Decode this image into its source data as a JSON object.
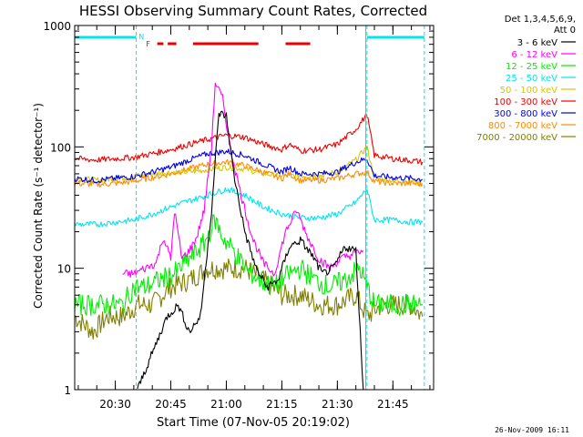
{
  "chart_data": {
    "type": "line",
    "title": "HESSI Observing Summary Count Rates, Corrected",
    "xlabel": "Start Time (07-Nov-05 20:19:02)",
    "ylabel": "Corrected Count Rate (s⁻¹ detector⁻¹)",
    "yscale": "log",
    "ylim": [
      1,
      1000
    ],
    "xlim": [
      "20:19:02",
      "21:56:00"
    ],
    "x_ticks": [
      "20:30",
      "20:45",
      "21:00",
      "21:15",
      "21:30",
      "21:45"
    ],
    "y_ticks": [
      "1",
      "10",
      "100",
      "1000"
    ],
    "grid": false,
    "timestamp": "26-Nov-2009 16:11",
    "legend": {
      "placement": "right",
      "header": [
        "Det 1,3,4,5,6,9,",
        "Att 0"
      ],
      "entries": [
        {
          "label": "3 - 6 keV",
          "color": "#000000"
        },
        {
          "label": "6 - 12 keV",
          "color": "#ff00ff"
        },
        {
          "label": "12 - 25 keV",
          "color": "#00ee00"
        },
        {
          "label": "25 - 50 keV",
          "color": "#00e5ee"
        },
        {
          "label": "50 - 100 keV",
          "color": "#d6c800"
        },
        {
          "label": "100 - 300 keV",
          "color": "#ee0000"
        },
        {
          "label": "300 - 800 keV",
          "color": "#0000ee"
        },
        {
          "label": "800 - 7000 keV",
          "color": "#ff8c00"
        },
        {
          "label": "7000 - 20000 keV",
          "color": "#808000"
        }
      ]
    },
    "flags": {
      "N": {
        "label": "N",
        "color": "#00e5ee"
      },
      "F": {
        "label": "F",
        "color": "#ee0000"
      }
    },
    "series": [
      {
        "name": "3 - 6 keV",
        "color": "#000000",
        "x": [
          "20:36",
          "20:40",
          "20:44",
          "20:47",
          "20:50",
          "20:53",
          "20:56",
          "20:58",
          "21:00",
          "21:02",
          "21:05",
          "21:08",
          "21:11",
          "21:14",
          "21:17",
          "21:20",
          "21:23",
          "21:26",
          "21:29",
          "21:32",
          "21:35",
          "21:37"
        ],
        "y": [
          1,
          2,
          4,
          5,
          3,
          4,
          30,
          190,
          180,
          60,
          20,
          10,
          7,
          8,
          15,
          17,
          13,
          9,
          10,
          15,
          14,
          1
        ]
      },
      {
        "name": "6 - 12 keV",
        "color": "#ff00ff",
        "x": [
          "20:32",
          "20:35",
          "20:38",
          "20:41",
          "20:43",
          "20:45",
          "20:46",
          "20:48",
          "20:50",
          "20:52",
          "20:54",
          "20:56",
          "20:57",
          "20:59",
          "21:01",
          "21:04",
          "21:07",
          "21:10",
          "21:13",
          "21:16",
          "21:19",
          "21:22",
          "21:25",
          "21:28",
          "21:31",
          "21:34",
          "21:37"
        ],
        "y": [
          9,
          9,
          10,
          11,
          18,
          12,
          30,
          12,
          14,
          18,
          30,
          100,
          340,
          250,
          100,
          40,
          18,
          11,
          9,
          20,
          30,
          18,
          12,
          10,
          12,
          13,
          14
        ]
      },
      {
        "name": "12 - 25 keV",
        "color": "#00ee00",
        "x": [
          "20:19",
          "20:24",
          "20:28",
          "20:32",
          "20:35",
          "20:38",
          "20:42",
          "20:46",
          "20:50",
          "20:54",
          "20:57",
          "20:59",
          "21:02",
          "21:05",
          "21:09",
          "21:13",
          "21:17",
          "21:20",
          "21:24",
          "21:28",
          "21:32",
          "21:36",
          "21:40",
          "21:45",
          "21:50",
          "21:53"
        ],
        "y": [
          5,
          5,
          5,
          5,
          7,
          7,
          8,
          9,
          12,
          16,
          25,
          18,
          14,
          10,
          8,
          7,
          9,
          10,
          8,
          7,
          8,
          10,
          5,
          5,
          5,
          5
        ]
      },
      {
        "name": "25 - 50 keV",
        "color": "#00e5ee",
        "x": [
          "20:19",
          "20:25",
          "20:30",
          "20:35",
          "20:40",
          "20:45",
          "20:50",
          "20:55",
          "21:00",
          "21:05",
          "21:10",
          "21:15",
          "21:20",
          "21:25",
          "21:30",
          "21:35",
          "21:38",
          "21:40",
          "21:45",
          "21:50",
          "21:53"
        ],
        "y": [
          23,
          23,
          24,
          25,
          28,
          32,
          36,
          40,
          45,
          40,
          32,
          28,
          26,
          26,
          28,
          35,
          45,
          25,
          25,
          24,
          24
        ]
      },
      {
        "name": "50 - 100 keV",
        "color": "#d6c800",
        "x": [
          "20:19",
          "20:25",
          "20:30",
          "20:35",
          "20:40",
          "20:45",
          "20:50",
          "20:55",
          "21:00",
          "21:05",
          "21:10",
          "21:15",
          "21:20",
          "21:25",
          "21:30",
          "21:35",
          "21:38",
          "21:40",
          "21:45",
          "21:50",
          "21:53"
        ],
        "y": [
          55,
          53,
          55,
          57,
          60,
          62,
          62,
          65,
          68,
          66,
          60,
          58,
          58,
          58,
          62,
          78,
          100,
          55,
          53,
          52,
          50
        ]
      },
      {
        "name": "100 - 300 keV",
        "color": "#ee0000",
        "x": [
          "20:19",
          "20:25",
          "20:30",
          "20:35",
          "20:40",
          "20:45",
          "20:50",
          "20:55",
          "21:00",
          "21:05",
          "21:10",
          "21:15",
          "21:17",
          "21:20",
          "21:25",
          "21:30",
          "21:35",
          "21:38",
          "21:40",
          "21:45",
          "21:50",
          "21:53"
        ],
        "y": [
          80,
          78,
          80,
          82,
          88,
          95,
          105,
          115,
          125,
          120,
          105,
          95,
          105,
          93,
          95,
          105,
          140,
          185,
          85,
          80,
          77,
          75
        ]
      },
      {
        "name": "300 - 800 keV",
        "color": "#0000ee",
        "x": [
          "20:19",
          "20:25",
          "20:30",
          "20:35",
          "20:40",
          "20:45",
          "20:50",
          "20:55",
          "21:00",
          "21:05",
          "21:10",
          "21:15",
          "21:17",
          "21:20",
          "21:25",
          "21:30",
          "21:35",
          "21:38",
          "21:40",
          "21:45",
          "21:50",
          "21:53"
        ],
        "y": [
          55,
          53,
          55,
          57,
          62,
          68,
          78,
          88,
          92,
          85,
          72,
          62,
          68,
          60,
          60,
          62,
          75,
          80,
          58,
          56,
          55,
          54
        ]
      },
      {
        "name": "800 - 7000 keV",
        "color": "#ff8c00",
        "x": [
          "20:19",
          "20:25",
          "20:30",
          "20:35",
          "20:40",
          "20:45",
          "20:50",
          "20:55",
          "21:00",
          "21:05",
          "21:10",
          "21:15",
          "21:17",
          "21:20",
          "21:25",
          "21:30",
          "21:35",
          "21:38",
          "21:40",
          "21:45",
          "21:50",
          "21:53"
        ],
        "y": [
          50,
          49,
          50,
          52,
          56,
          60,
          66,
          72,
          75,
          70,
          62,
          55,
          60,
          53,
          53,
          55,
          60,
          62,
          52,
          50,
          50,
          49
        ]
      },
      {
        "name": "7000 - 20000 keV",
        "color": "#808000",
        "x": [
          "20:19",
          "20:24",
          "20:28",
          "20:32",
          "20:36",
          "20:40",
          "20:45",
          "20:50",
          "20:55",
          "21:00",
          "21:05",
          "21:10",
          "21:15",
          "21:20",
          "21:25",
          "21:30",
          "21:35",
          "21:38",
          "21:42",
          "21:46",
          "21:50",
          "21:53"
        ],
        "y": [
          4,
          3,
          4,
          4,
          5,
          5,
          7,
          8,
          10,
          10,
          10,
          8,
          6,
          6,
          5,
          5,
          6,
          4,
          5,
          5,
          5,
          4
        ]
      }
    ]
  }
}
